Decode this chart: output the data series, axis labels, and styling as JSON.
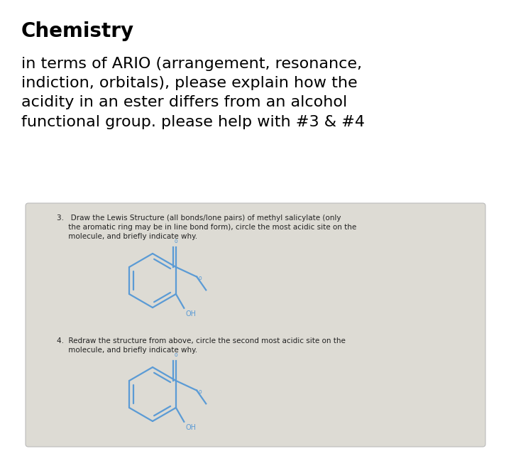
{
  "title": "Chemistry",
  "title_fontsize": 20,
  "title_fontweight": "bold",
  "body_text": "in terms of ARIO (arrangement, resonance,\nindiction, orbitals), please explain how the\nacidity in an ester differs from an alcohol\nfunctional group. please help with #3 & #4",
  "body_fontsize": 16,
  "card_bg": "#dddbd4",
  "card_edge": "#bbbbbb",
  "q3_text_line1": "3.   Draw the Lewis Structure (all bonds/lone pairs) of methyl salicylate (only",
  "q3_text_line2": "     the aromatic ring may be in line bond form), circle the most acidic site on the",
  "q3_text_line3": "     molecule, and briefly indicate why.",
  "q4_text_line1": "4.  Redraw the structure from above, circle the second most acidic site on the",
  "q4_text_line2": "     molecule, and briefly indicate why.",
  "text_fontsize": 7.5,
  "struct_color": "#5b9bd5",
  "oh_label": "OH",
  "bg_color": "#ffffff"
}
